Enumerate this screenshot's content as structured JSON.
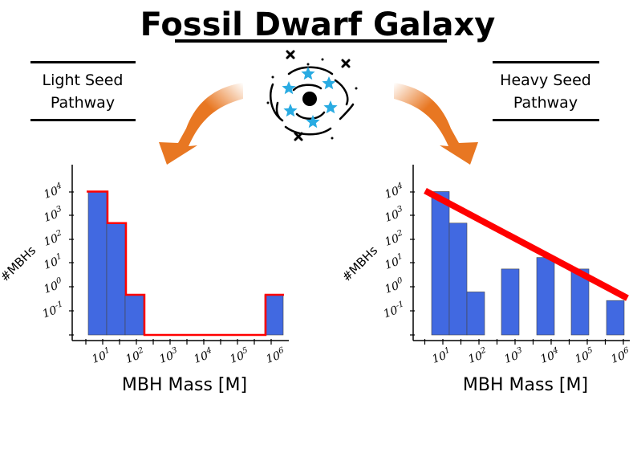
{
  "title": "Fossil Dwarf Galaxy",
  "left_pathway": {
    "line1": "Light Seed",
    "line2": "Pathway"
  },
  "right_pathway": {
    "line1": "Heavy Seed",
    "line2": "Pathway"
  },
  "colors": {
    "bar": "#4169E1",
    "outline": "#ff0000",
    "arrow": "#E87722",
    "star": "#29ABE2"
  },
  "icons": [
    "galaxy-icon",
    "black-hole-icon",
    "star-icon",
    "arrow-icon"
  ],
  "chart_data": [
    {
      "type": "bar",
      "name": "light-seed",
      "xlabel": "MBH Mass [M]",
      "ylabel": "#MBHs",
      "x_ticks": [
        "10^1",
        "10^2",
        "10^3",
        "10^4",
        "10^5",
        "10^6"
      ],
      "y_ticks": [
        "10^4",
        "10^3",
        "10^2",
        "10^1",
        "10^0",
        "10^-1"
      ],
      "log_mass_bins": [
        0.8,
        1.2,
        1.6,
        2.0,
        5.6,
        6.0
      ],
      "bars": [
        {
          "log_mass": 0.9,
          "log_count": 4.0
        },
        {
          "log_mass": 1.3,
          "log_count": 2.9
        },
        {
          "log_mass": 1.7,
          "log_count": 0.4
        },
        {
          "log_mass": 5.7,
          "log_count": 0.4
        }
      ],
      "outline": "step envelope in red"
    },
    {
      "type": "bar",
      "name": "heavy-seed",
      "xlabel": "MBH Mass [M]",
      "ylabel": "#MBHs",
      "x_ticks": [
        "10^1",
        "10^2",
        "10^3",
        "10^4",
        "10^5",
        "10^6"
      ],
      "y_ticks": [
        "10^4",
        "10^3",
        "10^2",
        "10^1",
        "10^0",
        "10^-1"
      ],
      "bars": [
        {
          "log_mass": 0.9,
          "log_count": 4.0
        },
        {
          "log_mass": 1.3,
          "log_count": 2.9
        },
        {
          "log_mass": 1.7,
          "log_count": 0.5
        },
        {
          "log_mass": 2.8,
          "log_count": 1.3
        },
        {
          "log_mass": 3.8,
          "log_count": 1.7
        },
        {
          "log_mass": 4.8,
          "log_count": 1.3
        },
        {
          "log_mass": 5.8,
          "log_count": 0.2
        }
      ],
      "trend_line": {
        "from": [
          0.5,
          4.0
        ],
        "to": [
          6.0,
          0.2
        ]
      }
    }
  ]
}
